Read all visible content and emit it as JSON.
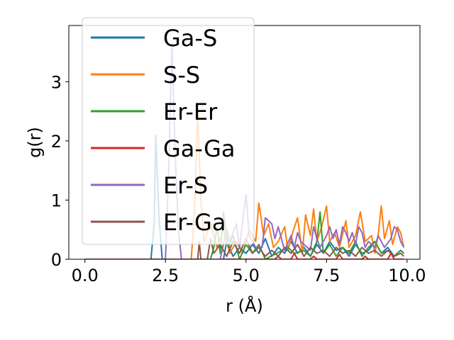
{
  "chart_data": {
    "type": "line",
    "xlabel": "r (Å)",
    "ylabel": "g(r)",
    "xlim": [
      -0.5,
      10.4
    ],
    "ylim": [
      0,
      3.95
    ],
    "xticks": [
      0.0,
      2.5,
      5.0,
      7.5,
      10.0
    ],
    "xtick_labels": [
      "0.0",
      "2.5",
      "5.0",
      "7.5",
      "10.0"
    ],
    "yticks": [
      0,
      1,
      2,
      3
    ],
    "ytick_labels": [
      "0",
      "1",
      "2",
      "3"
    ],
    "legend_position": "upper-left",
    "grid": false,
    "series": [
      {
        "name": "Ga-S",
        "color": "#1f77b4",
        "points": [
          [
            0,
            0
          ],
          [
            2.05,
            0
          ],
          [
            2.15,
            0.6
          ],
          [
            2.2,
            2.1
          ],
          [
            2.3,
            0.7
          ],
          [
            2.4,
            0
          ],
          [
            4.3,
            0
          ],
          [
            4.4,
            0.3
          ],
          [
            4.6,
            0.05
          ],
          [
            4.8,
            0.2
          ],
          [
            5.0,
            0.1
          ],
          [
            5.2,
            0.25
          ],
          [
            5.4,
            0.1
          ],
          [
            5.6,
            0.35
          ],
          [
            5.8,
            0.05
          ],
          [
            6.0,
            0.2
          ],
          [
            6.2,
            0.1
          ],
          [
            6.4,
            0.3
          ],
          [
            6.6,
            0.1
          ],
          [
            6.8,
            0.2
          ],
          [
            7.0,
            0.05
          ],
          [
            7.2,
            0.25
          ],
          [
            7.4,
            0.1
          ],
          [
            7.6,
            0.3
          ],
          [
            7.8,
            0.15
          ],
          [
            8.0,
            0.2
          ],
          [
            8.2,
            0.05
          ],
          [
            8.4,
            0.25
          ],
          [
            8.6,
            0.1
          ],
          [
            8.8,
            0.15
          ],
          [
            9.0,
            0.3
          ],
          [
            9.2,
            0.1
          ],
          [
            9.4,
            0.2
          ],
          [
            9.6,
            0.05
          ],
          [
            9.8,
            0.15
          ],
          [
            9.9,
            0.1
          ]
        ]
      },
      {
        "name": "S-S",
        "color": "#ff7f0e",
        "points": [
          [
            0,
            0
          ],
          [
            3.3,
            0
          ],
          [
            3.4,
            0.8
          ],
          [
            3.5,
            2.45
          ],
          [
            3.6,
            1.0
          ],
          [
            3.7,
            0.3
          ],
          [
            3.9,
            0.6
          ],
          [
            4.1,
            0.2
          ],
          [
            4.3,
            0.5
          ],
          [
            4.5,
            0.1
          ],
          [
            4.7,
            0.3
          ],
          [
            4.9,
            0.1
          ],
          [
            5.1,
            0.5
          ],
          [
            5.3,
            0.3
          ],
          [
            5.4,
            0.95
          ],
          [
            5.55,
            0.4
          ],
          [
            5.7,
            0.6
          ],
          [
            5.85,
            0.2
          ],
          [
            6.0,
            0.3
          ],
          [
            6.2,
            0.55
          ],
          [
            6.3,
            0.15
          ],
          [
            6.45,
            0.45
          ],
          [
            6.6,
            0.7
          ],
          [
            6.75,
            0.1
          ],
          [
            6.85,
            0.75
          ],
          [
            7.0,
            0.4
          ],
          [
            7.1,
            0.85
          ],
          [
            7.2,
            0.3
          ],
          [
            7.35,
            0.55
          ],
          [
            7.5,
            0.9
          ],
          [
            7.6,
            0.3
          ],
          [
            7.75,
            0.45
          ],
          [
            7.9,
            0.2
          ],
          [
            8.1,
            0.65
          ],
          [
            8.2,
            0.2
          ],
          [
            8.4,
            0.4
          ],
          [
            8.55,
            0.8
          ],
          [
            8.7,
            0.3
          ],
          [
            8.9,
            0.4
          ],
          [
            9.0,
            0.1
          ],
          [
            9.1,
            0.4
          ],
          [
            9.2,
            0.9
          ],
          [
            9.3,
            0.35
          ],
          [
            9.45,
            0.65
          ],
          [
            9.55,
            0.25
          ],
          [
            9.7,
            0.55
          ],
          [
            9.8,
            0.45
          ],
          [
            9.9,
            0.2
          ]
        ]
      },
      {
        "name": "Er-Er",
        "color": "#2ca02c",
        "points": [
          [
            0,
            0
          ],
          [
            3.9,
            0
          ],
          [
            4.0,
            0.2
          ],
          [
            4.1,
            0.55
          ],
          [
            4.2,
            0.1
          ],
          [
            4.3,
            0.8
          ],
          [
            4.45,
            0.2
          ],
          [
            4.6,
            0.4
          ],
          [
            4.8,
            0
          ],
          [
            5.0,
            0.25
          ],
          [
            5.2,
            0.1
          ],
          [
            5.4,
            0.25
          ],
          [
            5.6,
            0
          ],
          [
            6.3,
            0.2
          ],
          [
            6.5,
            0.1
          ],
          [
            6.8,
            0.15
          ],
          [
            7.0,
            0.05
          ],
          [
            7.2,
            0.3
          ],
          [
            7.3,
            0.8
          ],
          [
            7.4,
            0.1
          ],
          [
            7.6,
            0.25
          ],
          [
            7.8,
            0.05
          ],
          [
            8.0,
            0.2
          ],
          [
            8.2,
            0.1
          ],
          [
            8.4,
            0.3
          ],
          [
            8.6,
            0.05
          ],
          [
            8.8,
            0.2
          ],
          [
            9.0,
            0.3
          ],
          [
            9.2,
            0.1
          ],
          [
            9.4,
            0.15
          ],
          [
            9.6,
            0.05
          ],
          [
            9.8,
            0.15
          ],
          [
            9.9,
            0.1
          ]
        ]
      },
      {
        "name": "Ga-Ga",
        "color": "#d62728",
        "points": [
          [
            0,
            0
          ],
          [
            5.9,
            0
          ],
          [
            6.0,
            0.05
          ],
          [
            6.1,
            0
          ],
          [
            6.4,
            0
          ],
          [
            6.5,
            0.1
          ],
          [
            6.6,
            0
          ],
          [
            7.0,
            0
          ],
          [
            7.1,
            0.05
          ],
          [
            7.2,
            0
          ],
          [
            7.8,
            0
          ],
          [
            7.9,
            0.08
          ],
          [
            8.0,
            0
          ],
          [
            8.6,
            0
          ],
          [
            8.7,
            0.05
          ],
          [
            8.8,
            0
          ],
          [
            9.4,
            0
          ],
          [
            9.5,
            0.1
          ],
          [
            9.6,
            0
          ],
          [
            9.9,
            0
          ]
        ]
      },
      {
        "name": "Er-S",
        "color": "#9467bd",
        "points": [
          [
            0,
            0
          ],
          [
            2.5,
            0
          ],
          [
            2.6,
            1.5
          ],
          [
            2.7,
            3.65
          ],
          [
            2.8,
            1.8
          ],
          [
            2.9,
            0.5
          ],
          [
            3.0,
            0
          ],
          [
            4.2,
            0
          ],
          [
            4.4,
            0.5
          ],
          [
            4.5,
            0.3
          ],
          [
            4.7,
            0.6
          ],
          [
            4.8,
            0.2
          ],
          [
            5.0,
            1.1
          ],
          [
            5.1,
            0.4
          ],
          [
            5.3,
            0.2
          ],
          [
            5.5,
            0.2
          ],
          [
            5.6,
            0.7
          ],
          [
            5.7,
            0.65
          ],
          [
            5.8,
            0.6
          ],
          [
            5.9,
            0.35
          ],
          [
            6.0,
            0.55
          ],
          [
            6.1,
            0.35
          ],
          [
            6.2,
            0.15
          ],
          [
            6.4,
            0.4
          ],
          [
            6.5,
            0.2
          ],
          [
            6.6,
            0.45
          ],
          [
            6.7,
            0.3
          ],
          [
            6.8,
            0.25
          ],
          [
            7.0,
            0.15
          ],
          [
            7.1,
            0.55
          ],
          [
            7.2,
            0.35
          ],
          [
            7.3,
            0.2
          ],
          [
            7.5,
            0.4
          ],
          [
            7.6,
            0.55
          ],
          [
            7.7,
            0.35
          ],
          [
            7.8,
            0.5
          ],
          [
            7.9,
            0.25
          ],
          [
            8.0,
            0.55
          ],
          [
            8.1,
            0.45
          ],
          [
            8.2,
            0.3
          ],
          [
            8.3,
            0.45
          ],
          [
            8.4,
            0.25
          ],
          [
            8.5,
            0.55
          ],
          [
            8.6,
            0.45
          ],
          [
            8.7,
            0.2
          ],
          [
            8.8,
            0.3
          ],
          [
            9.0,
            0.2
          ],
          [
            9.1,
            0.4
          ],
          [
            9.2,
            0.3
          ],
          [
            9.3,
            0.2
          ],
          [
            9.5,
            0.35
          ],
          [
            9.6,
            0.55
          ],
          [
            9.7,
            0.5
          ],
          [
            9.8,
            0.3
          ],
          [
            9.9,
            0.2
          ]
        ]
      },
      {
        "name": "Er-Ga",
        "color": "#8c564b",
        "points": [
          [
            0,
            0
          ],
          [
            3.5,
            0
          ],
          [
            3.55,
            0.3
          ],
          [
            3.6,
            0
          ],
          [
            3.8,
            0
          ],
          [
            3.9,
            0.35
          ],
          [
            4.0,
            0.1
          ],
          [
            4.2,
            0.25
          ],
          [
            4.4,
            0.05
          ],
          [
            4.6,
            0.3
          ],
          [
            4.8,
            0.1
          ],
          [
            5.0,
            0.35
          ],
          [
            5.2,
            0.1
          ],
          [
            5.4,
            0.2
          ],
          [
            5.6,
            0.05
          ],
          [
            5.8,
            0.15
          ],
          [
            6.0,
            0.05
          ],
          [
            6.2,
            0.2
          ],
          [
            6.4,
            0.1
          ],
          [
            6.6,
            0.25
          ],
          [
            6.8,
            0.05
          ],
          [
            7.0,
            0.2
          ],
          [
            7.2,
            0.1
          ],
          [
            7.4,
            0.15
          ],
          [
            7.6,
            0.05
          ],
          [
            7.8,
            0.2
          ],
          [
            8.0,
            0.1
          ],
          [
            8.2,
            0.15
          ],
          [
            8.4,
            0.05
          ],
          [
            8.6,
            0.2
          ],
          [
            8.8,
            0.1
          ],
          [
            9.0,
            0.15
          ],
          [
            9.2,
            0.05
          ],
          [
            9.4,
            0.15
          ],
          [
            9.6,
            0.05
          ],
          [
            9.8,
            0.1
          ],
          [
            9.9,
            0.05
          ]
        ]
      }
    ]
  }
}
